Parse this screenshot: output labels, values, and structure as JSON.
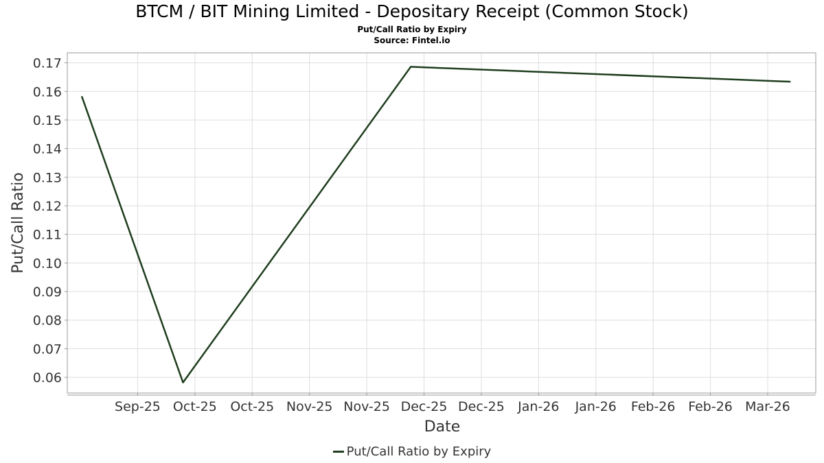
{
  "chart_data": {
    "type": "line",
    "title": "BTCM / BIT Mining Limited - Depositary Receipt (Common Stock)",
    "subtitle": "Put/Call Ratio by Expiry",
    "source": "Source: Fintel.io",
    "xlabel": "Date",
    "ylabel": "Put/Call Ratio",
    "x_tick_labels": [
      "Sep-25",
      "Oct-25",
      "Oct-25",
      "Nov-25",
      "Nov-25",
      "Dec-25",
      "Dec-25",
      "Jan-26",
      "Jan-26",
      "Feb-26",
      "Feb-26",
      "Mar-26"
    ],
    "y_tick_labels": [
      "0.06",
      "0.07",
      "0.08",
      "0.09",
      "0.10",
      "0.11",
      "0.12",
      "0.13",
      "0.14",
      "0.15",
      "0.16",
      "0.17"
    ],
    "ylim": [
      0.0545,
      0.1735
    ],
    "xlim": [
      "2025-09-01",
      "2026-03-27"
    ],
    "grid": true,
    "legend_position": "bottom-center",
    "line_color": "#1e3d1e",
    "series": [
      {
        "name": "Put/Call Ratio by Expiry",
        "x": [
          "2025-09-05",
          "2025-10-03",
          "2025-12-05",
          "2026-03-20"
        ],
        "values": [
          0.1583,
          0.0582,
          0.1686,
          0.1634
        ]
      }
    ]
  }
}
